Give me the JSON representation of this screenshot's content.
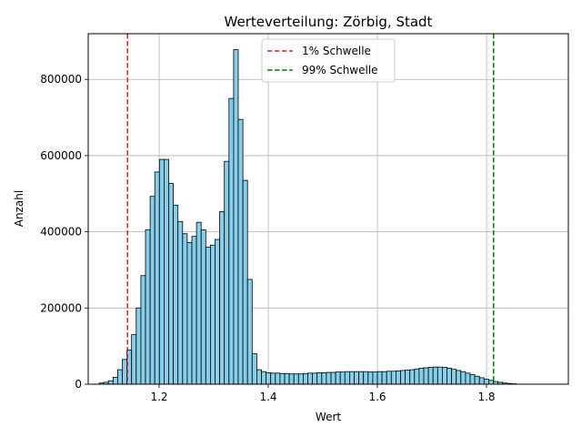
{
  "chart_data": {
    "type": "bar",
    "title": "Werteverteilung: Zörbig, Stadt",
    "xlabel": "Wert",
    "ylabel": "Anzahl",
    "xlim": [
      1.07,
      1.95
    ],
    "ylim": [
      0,
      920000
    ],
    "grid": true,
    "legend_position": "top-center",
    "bin_width": 0.0085,
    "bins_start": 1.09,
    "values": [
      3000,
      5000,
      9000,
      18000,
      38000,
      65000,
      90000,
      130000,
      200000,
      285000,
      405000,
      493000,
      557000,
      590000,
      590000,
      527000,
      470000,
      427000,
      395000,
      372000,
      388000,
      425000,
      405000,
      360000,
      365000,
      380000,
      453000,
      585000,
      750000,
      878000,
      695000,
      535000,
      275000,
      80000,
      38000,
      33000,
      30000,
      29000,
      29000,
      28000,
      28000,
      27000,
      27000,
      27000,
      28000,
      29000,
      29000,
      30000,
      30000,
      31000,
      31000,
      32000,
      32000,
      33000,
      33000,
      33000,
      33000,
      33000,
      32000,
      32000,
      33000,
      33000,
      34000,
      34000,
      35000,
      36000,
      37000,
      38000,
      40000,
      42000,
      43000,
      44000,
      45000,
      45000,
      44000,
      42000,
      39000,
      36000,
      33000,
      29000,
      25000,
      21000,
      17000,
      13000,
      10000,
      7000,
      5000,
      3000,
      2000,
      1000
    ],
    "bar_color": "#87CEEB",
    "bar_edge_color": "#000000",
    "x_ticks": [
      1.2,
      1.4,
      1.6,
      1.8
    ],
    "x_tick_labels": [
      "1.2",
      "1.4",
      "1.6",
      "1.8"
    ],
    "y_ticks": [
      0,
      200000,
      400000,
      600000,
      800000
    ],
    "y_tick_labels": [
      "0",
      "200000",
      "400000",
      "600000",
      "800000"
    ],
    "thresholds": [
      {
        "name": "1% Schwelle",
        "x": 1.142,
        "color": "#d62728"
      },
      {
        "name": "99% Schwelle",
        "x": 1.813,
        "color": "#008000"
      }
    ]
  }
}
